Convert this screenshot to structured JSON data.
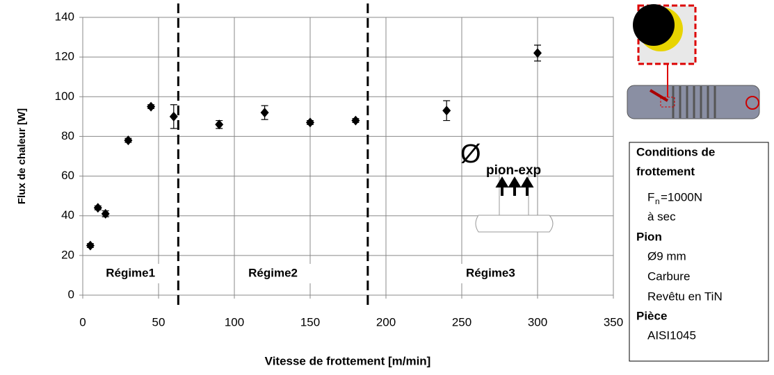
{
  "chart_data": {
    "type": "scatter",
    "x": [
      5,
      10,
      15,
      30,
      45,
      60,
      90,
      120,
      150,
      180,
      240,
      300
    ],
    "values": [
      25,
      44,
      41,
      78,
      95,
      90,
      86,
      92,
      87,
      88,
      93,
      122
    ],
    "errors": [
      1,
      1,
      1.5,
      1,
      1,
      6,
      2,
      3.5,
      1,
      1,
      5,
      4
    ],
    "color": "#000000",
    "xlim": [
      0,
      350
    ],
    "xticks": [
      0,
      50,
      100,
      150,
      200,
      250,
      300,
      350
    ],
    "ylim": [
      0,
      140
    ],
    "yticks": [
      0,
      20,
      40,
      60,
      80,
      100,
      120,
      140
    ],
    "grid": true,
    "xlabel": "Vitesse de frottement [m/min]",
    "ylabel": "Flux de chaleur  [W]",
    "boundaries": [
      63,
      188
    ],
    "regimes": [
      "Régime1",
      "Régime2",
      "Régime3"
    ],
    "flux_symbol": {
      "main": "Ø",
      "sub": "pion-exp"
    }
  },
  "conditions": {
    "heading": [
      "Conditions de",
      "frottement"
    ],
    "force": {
      "main": "F",
      "sub": "n",
      "rest": "=1000N"
    },
    "mode": "à sec",
    "pion_title": "Pion",
    "pion": [
      "Ø9 mm",
      "Carbure",
      "Revêtu en TiN"
    ],
    "piece_title": "Pièce",
    "piece": "AISI1045"
  }
}
